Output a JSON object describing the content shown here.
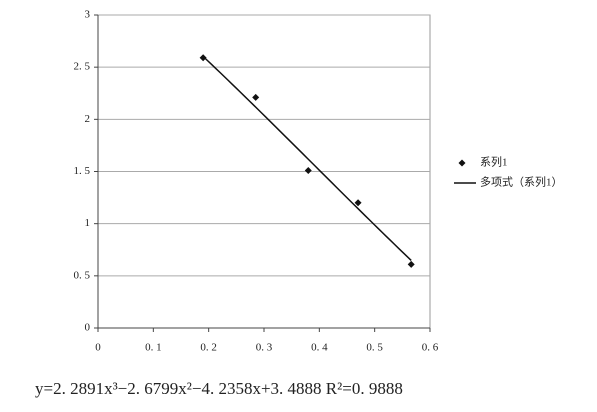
{
  "chart_data": {
    "type": "scatter",
    "series": [
      {
        "name": "系列1",
        "color": "#111111",
        "x": [
          0.19,
          0.285,
          0.38,
          0.47,
          0.566
        ],
        "values": [
          2.59,
          2.21,
          1.51,
          1.2,
          0.61
        ]
      }
    ],
    "trendline": {
      "name": "多项式（系列1）",
      "color": "#111111",
      "coefficients": [
        2.2891,
        -2.6799,
        -4.2358,
        3.4888
      ],
      "equation": "y=2. 2891x³−2. 6799x²−4. 2358x+3. 4888  R²=0. 9888"
    },
    "xlim": [
      0,
      0.6
    ],
    "xticks": [
      0,
      {
        "value": 0.1,
        "label": "0. 1"
      },
      {
        "value": 0.2,
        "label": "0. 2"
      },
      {
        "value": 0.3,
        "label": "0. 3"
      },
      {
        "value": 0.4,
        "label": "0. 4"
      },
      {
        "value": 0.5,
        "label": "0. 5"
      },
      {
        "value": 0.6,
        "label": "0. 6"
      }
    ],
    "ylim": [
      0,
      3
    ],
    "yticks": [
      0,
      {
        "value": 0.5,
        "label": "0. 5"
      },
      1,
      {
        "value": 1.5,
        "label": "1. 5"
      },
      2,
      {
        "value": 2.5,
        "label": "2. 5"
      },
      3
    ],
    "grid": true,
    "legend": "right"
  }
}
